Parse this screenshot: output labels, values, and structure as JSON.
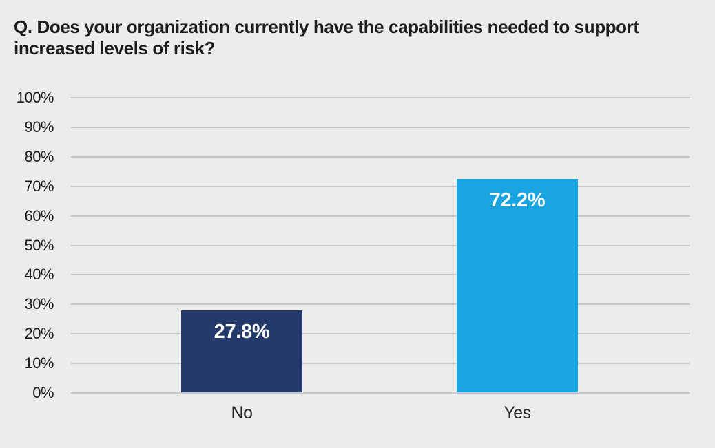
{
  "title": {
    "lines": [
      "Q. Does your organization currently have the capabilities needed to support",
      "increased levels of risk?"
    ]
  },
  "chart_data": {
    "type": "bar",
    "title": "Q. Does your organization currently have the capabilities needed to support increased levels of risk?",
    "categories": [
      "No",
      "Yes"
    ],
    "values": [
      27.8,
      72.2
    ],
    "value_labels": [
      "27.8%",
      "72.2%"
    ],
    "bar_colors": [
      "#243a6a",
      "#18a4e0"
    ],
    "xlabel": "",
    "ylabel": "",
    "ylim": [
      0,
      100
    ],
    "y_ticks": [
      "0%",
      "10%",
      "20%",
      "30%",
      "40%",
      "50%",
      "60%",
      "70%",
      "80%",
      "90%",
      "100%"
    ],
    "grid": true,
    "legend": false
  },
  "colors": {
    "background": "#ececec",
    "gridline": "#c6c6cb",
    "title_text": "#1c1c1e",
    "tick_text": "#1d1d1f",
    "value_label_text": "#ffffff"
  }
}
